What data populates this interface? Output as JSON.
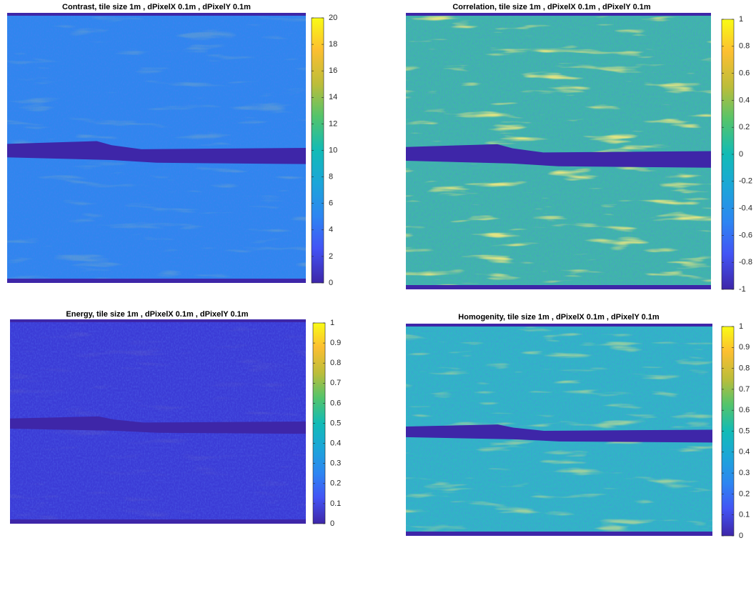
{
  "chart_data": [
    {
      "type": "heatmap",
      "title": "Contrast, tile size 1m , dPixelX 0.1m , dPixelY 0.1m",
      "colormap": "parula",
      "color": "#2f86ee",
      "clim": [
        0,
        20
      ],
      "cticks": [
        0,
        2,
        4,
        6,
        8,
        10,
        12,
        14,
        16,
        18,
        20
      ]
    },
    {
      "type": "heatmap",
      "title": "Correlation, tile size 1m , dPixelX 0.1m , dPixelY 0.1m",
      "colormap": "parula",
      "color": "#3fb7a8",
      "clim": [
        -1,
        1
      ],
      "cticks": [
        -1,
        -0.8,
        -0.6,
        -0.4,
        -0.2,
        0,
        0.2,
        0.4,
        0.6,
        0.8,
        1
      ]
    },
    {
      "type": "heatmap",
      "title": "Energy, tile size 1m , dPixelX 0.1m , dPixelY 0.1m",
      "colormap": "parula",
      "color": "#3b3bd6",
      "clim": [
        0,
        1
      ],
      "cticks": [
        0,
        0.1,
        0.2,
        0.3,
        0.4,
        0.5,
        0.6,
        0.7,
        0.8,
        0.9,
        1
      ]
    },
    {
      "type": "heatmap",
      "title": "Homogenity, tile size 1m , dPixelX 0.1m , dPixelY 0.1m",
      "colormap": "parula",
      "color": "#30b6c4",
      "clim": [
        0,
        1
      ],
      "cticks": [
        0,
        0.1,
        0.2,
        0.3,
        0.4,
        0.5,
        0.6,
        0.7,
        0.8,
        0.9,
        1
      ]
    }
  ]
}
